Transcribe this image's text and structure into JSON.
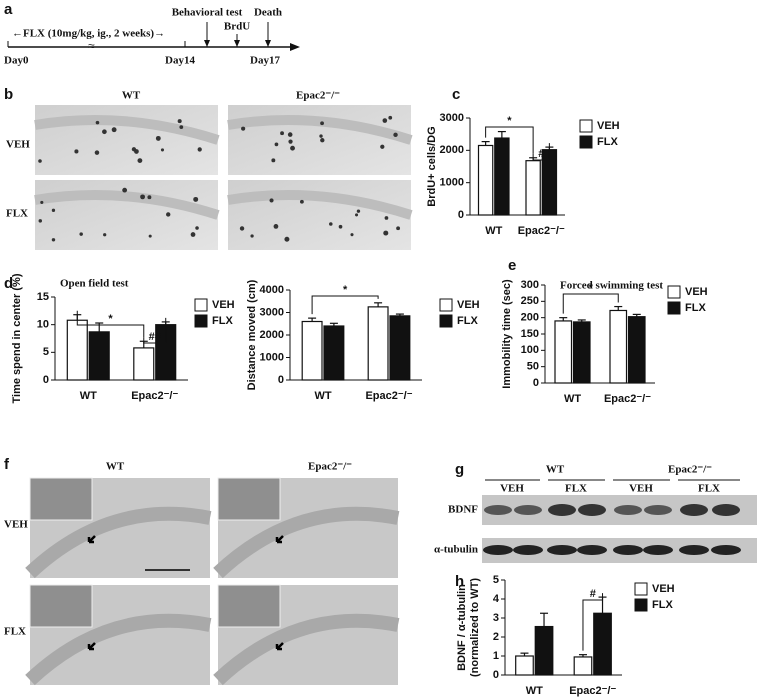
{
  "panels": {
    "a": {
      "label": "a",
      "treatment": "←FLX (10mg/kg, ig., 2 weeks)→",
      "events": [
        "Behavioral test",
        "BrdU",
        "Death"
      ],
      "days": [
        "Day0",
        "Day14",
        "Day17"
      ]
    },
    "b": {
      "label": "b",
      "columns": [
        "WT",
        "Epac2⁻/⁻"
      ],
      "rows": [
        "VEH",
        "FLX"
      ]
    },
    "f": {
      "label": "f",
      "columns": [
        "WT",
        "Epac2⁻/⁻"
      ],
      "rows": [
        "VEH",
        "FLX"
      ]
    },
    "g": {
      "label": "g",
      "groups": [
        "WT",
        "Epac2⁻/⁻"
      ],
      "lanes": [
        "VEH",
        "FLX",
        "VEH",
        "FLX"
      ],
      "bands": [
        "BDNF",
        "α-tubulin"
      ]
    }
  },
  "chart_data": [
    {
      "type": "bar",
      "label": "c",
      "ylabel": "BrdU+ cells/DG",
      "categories": [
        "WT",
        "Epac2⁻/⁻"
      ],
      "series": [
        {
          "name": "VEH",
          "color": "#ffffff",
          "values": [
            2150,
            1680
          ],
          "errors": [
            120,
            90
          ]
        },
        {
          "name": "FLX",
          "color": "#111111",
          "values": [
            2380,
            2020
          ],
          "errors": [
            200,
            80
          ]
        }
      ],
      "ylim": [
        0,
        3000
      ],
      "yticks": [
        0,
        1000,
        2000,
        3000
      ],
      "annotations": [
        "*",
        "#"
      ]
    },
    {
      "type": "bar",
      "label": "d",
      "title": "Open field test",
      "ylabel": "Time spend in center (%)",
      "categories": [
        "WT",
        "Epac2⁻/⁻"
      ],
      "series": [
        {
          "name": "VEH",
          "color": "#ffffff",
          "values": [
            10.8,
            5.8
          ],
          "errors": [
            1.0,
            1.2
          ]
        },
        {
          "name": "FLX",
          "color": "#111111",
          "values": [
            8.7,
            10.0
          ],
          "errors": [
            1.6,
            0.5
          ]
        }
      ],
      "ylim": [
        0,
        15
      ],
      "yticks": [
        0,
        5,
        10,
        15
      ],
      "annotations": [
        "*",
        "##"
      ]
    },
    {
      "type": "bar",
      "ylabel": "Distance moved (cm)",
      "categories": [
        "WT",
        "Epac2⁻/⁻"
      ],
      "series": [
        {
          "name": "VEH",
          "color": "#ffffff",
          "values": [
            2600,
            3250
          ],
          "errors": [
            150,
            180
          ]
        },
        {
          "name": "FLX",
          "color": "#111111",
          "values": [
            2400,
            2850
          ],
          "errors": [
            120,
            80
          ]
        }
      ],
      "ylim": [
        0,
        4000
      ],
      "yticks": [
        0,
        1000,
        2000,
        3000,
        4000
      ],
      "annotations": [
        "*"
      ]
    },
    {
      "type": "bar",
      "label": "e",
      "title": "Forced swimming test",
      "ylabel": "Immobility time (sec)",
      "categories": [
        "WT",
        "Epac2⁻/⁻"
      ],
      "series": [
        {
          "name": "VEH",
          "color": "#ffffff",
          "values": [
            190,
            222
          ],
          "errors": [
            10,
            12
          ]
        },
        {
          "name": "FLX",
          "color": "#111111",
          "values": [
            187,
            203
          ],
          "errors": [
            6,
            7
          ]
        }
      ],
      "ylim": [
        0,
        300
      ],
      "yticks": [
        0,
        50,
        100,
        150,
        200,
        250,
        300
      ],
      "annotations": [
        "*"
      ]
    },
    {
      "type": "bar",
      "label": "h",
      "ylabel": [
        "BDNF / α-tubulin",
        "(normalized to WT)"
      ],
      "categories": [
        "WT",
        "Epac2⁻/⁻"
      ],
      "series": [
        {
          "name": "VEH",
          "color": "#ffffff",
          "values": [
            1.0,
            0.95
          ],
          "errors": [
            0.15,
            0.12
          ]
        },
        {
          "name": "FLX",
          "color": "#111111",
          "values": [
            2.55,
            3.25
          ],
          "errors": [
            0.7,
            0.85
          ]
        }
      ],
      "ylim": [
        0,
        5
      ],
      "yticks": [
        0,
        1,
        2,
        3,
        4,
        5
      ],
      "annotations": [
        "#"
      ]
    }
  ]
}
